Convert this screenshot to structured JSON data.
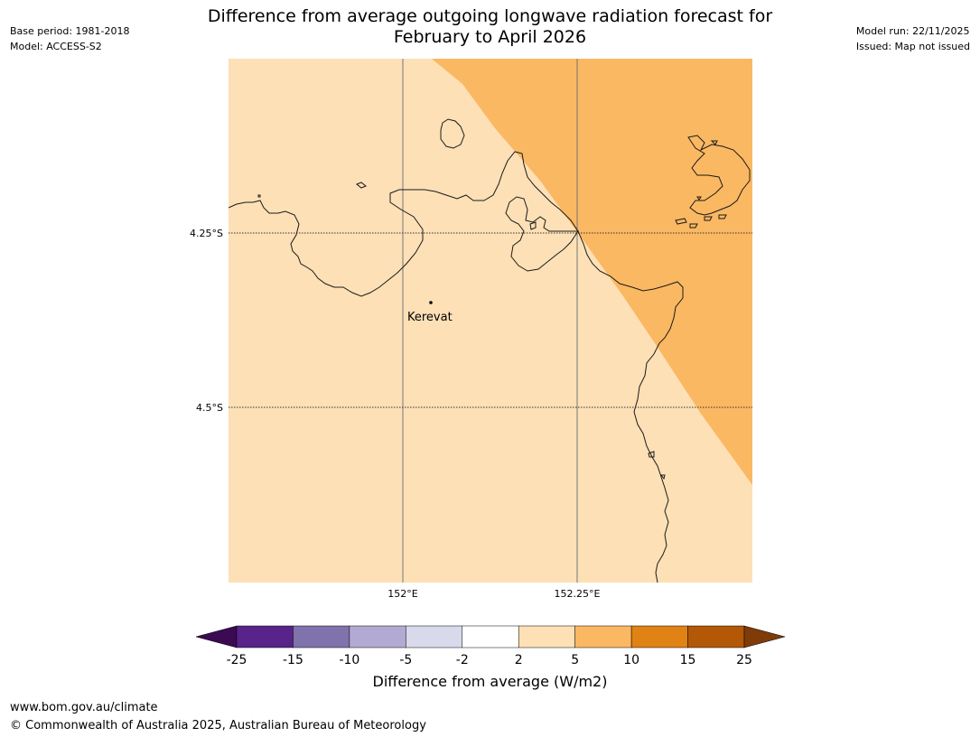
{
  "header": {
    "title_line1": "Difference from average outgoing longwave radiation forecast for",
    "title_line2": "February to April 2026",
    "base_period": "Base period: 1981-2018",
    "model": "Model: ACCESS-S2",
    "model_run": "Model run: 22/11/2025",
    "issued": "Issued: Map not issued"
  },
  "map": {
    "lat_labels": [
      "4.25°S",
      "4.5°S"
    ],
    "lon_labels": [
      "152°E",
      "152.25°E"
    ],
    "place": {
      "name": "Kerevat"
    },
    "colors": {
      "background_category": "#fde0b6",
      "warm_category": "#fbb862",
      "coastline": "#1a1a1a"
    }
  },
  "colorbar": {
    "ticks": [
      "-25",
      "-15",
      "-10",
      "-5",
      "-2",
      "2",
      "5",
      "10",
      "15",
      "25"
    ],
    "colors": [
      "#3b0a52",
      "#582489",
      "#8073ac",
      "#b2aad2",
      "#d9d9ec",
      "#ffffff",
      "#fde0b6",
      "#fbb862",
      "#e08214",
      "#b35806",
      "#7f3b08"
    ],
    "label": "Difference from average (W/m2)"
  },
  "footer": {
    "url": "www.bom.gov.au/climate",
    "copyright": "© Commonwealth of Australia 2025, Australian Bureau of Meteorology"
  }
}
